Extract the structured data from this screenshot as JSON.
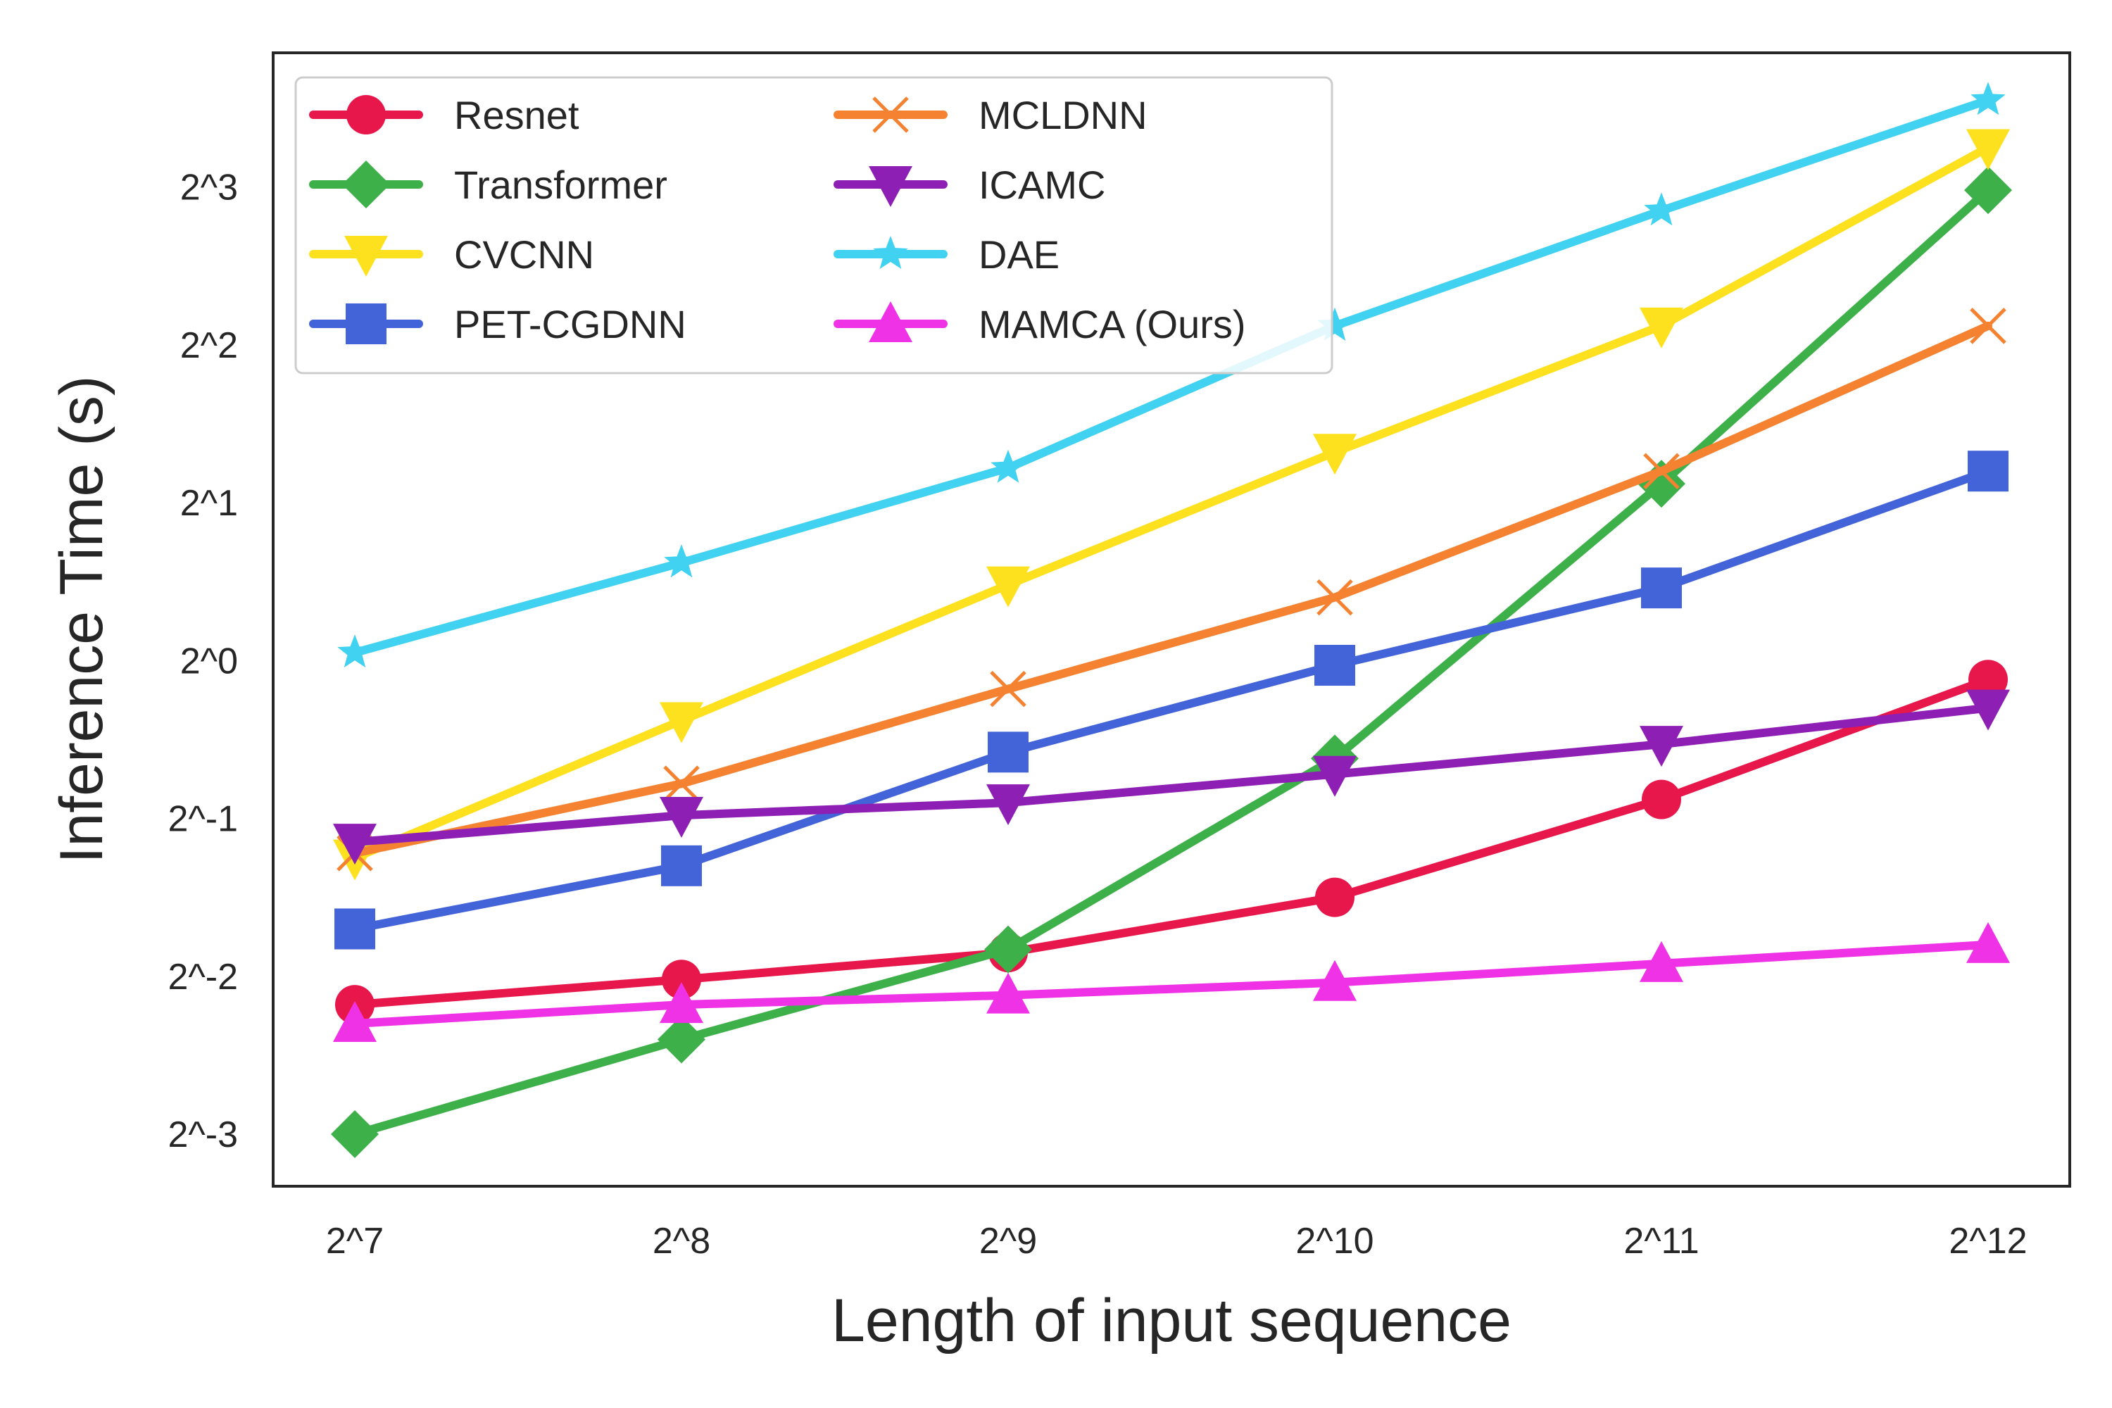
{
  "chart_data": {
    "type": "line",
    "title": "",
    "xlabel": "Length of input sequence",
    "ylabel": "Inference Time (s)",
    "x_scale": "log2",
    "y_scale": "log2",
    "categories": [
      "2^7",
      "2^8",
      "2^9",
      "2^10",
      "2^11",
      "2^12"
    ],
    "x_exponents": [
      7,
      8,
      9,
      10,
      11,
      12
    ],
    "y_ticks": [
      {
        "exp": 3,
        "label": "2^3"
      },
      {
        "exp": 2,
        "label": "2^2"
      },
      {
        "exp": 1,
        "label": "2^1"
      },
      {
        "exp": 0,
        "label": "2^0"
      },
      {
        "exp": -1,
        "label": "2^-1"
      },
      {
        "exp": -2,
        "label": "2^-2"
      },
      {
        "exp": -3,
        "label": "2^-3"
      }
    ],
    "ylim_exp": [
      -3.33,
      3.85
    ],
    "xlim_exp": [
      6.75,
      12.25
    ],
    "grid": false,
    "legend_position": "top-left",
    "legend_columns": 2,
    "series": [
      {
        "name": "Resnet",
        "color": "#E8174B",
        "marker": "circle",
        "log2_values": [
          -2.18,
          -2.02,
          -1.85,
          -1.5,
          -0.88,
          -0.12
        ]
      },
      {
        "name": "Transformer",
        "color": "#3DB04A",
        "marker": "diamond",
        "log2_values": [
          -3.0,
          -2.4,
          -1.83,
          -0.62,
          1.12,
          2.98
        ]
      },
      {
        "name": "CVCNN",
        "color": "#FDE11F",
        "marker": "triangle-down",
        "log2_values": [
          -1.25,
          -0.38,
          0.48,
          1.32,
          2.12,
          3.25
        ]
      },
      {
        "name": "PET-CGDNN",
        "color": "#4363D8",
        "marker": "square",
        "log2_values": [
          -1.7,
          -1.3,
          -0.58,
          -0.03,
          0.46,
          1.2
        ]
      },
      {
        "name": "MCLDNN",
        "color": "#F58231",
        "marker": "x",
        "log2_values": [
          -1.22,
          -0.78,
          -0.18,
          0.4,
          1.2,
          2.12
        ]
      },
      {
        "name": "ICAMC",
        "color": "#8E1FB5",
        "marker": "triangle-down",
        "log2_values": [
          -1.15,
          -0.98,
          -0.9,
          -0.72,
          -0.53,
          -0.3
        ]
      },
      {
        "name": "DAE",
        "color": "#40D2F0",
        "marker": "star",
        "log2_values": [
          0.05,
          0.62,
          1.22,
          2.12,
          2.85,
          3.55
        ]
      },
      {
        "name": "MAMCA (Ours)",
        "color": "#F032E6",
        "marker": "triangle-up",
        "log2_values": [
          -2.3,
          -2.18,
          -2.12,
          -2.04,
          -1.92,
          -1.8
        ]
      }
    ]
  }
}
